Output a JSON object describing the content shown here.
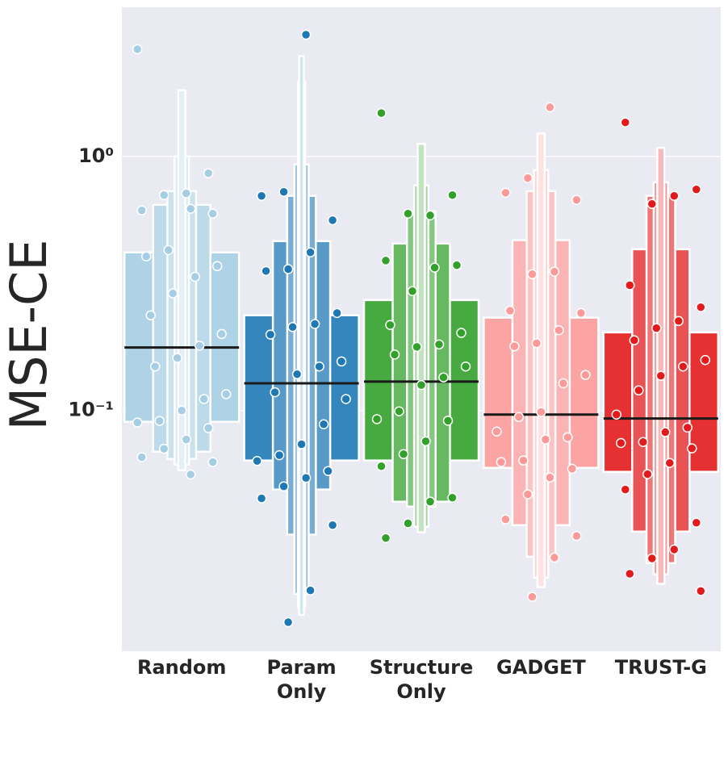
{
  "chart_data": {
    "type": "boxen",
    "y_label": "MSE-CE",
    "log_y": true,
    "grid": true,
    "categories": [
      "Random",
      "Param\nOnly",
      "Structure\nOnly",
      "GADGET",
      "TRUST-G"
    ],
    "ylim": [
      0.0113,
      3.86
    ],
    "yticks": [
      {
        "value": 0.1,
        "label": "10⁻¹"
      },
      {
        "value": 1,
        "label": "10⁰"
      }
    ],
    "groups": [
      {
        "color": "#a6cee3",
        "median": 0.177,
        "levels": [
          [
            0.0903,
            0.419
          ],
          [
            0.0689,
            0.645
          ],
          [
            0.0645,
            0.73
          ],
          [
            0.0612,
            1.0
          ],
          [
            0.0582,
            1.82
          ]
        ],
        "points": [
          2.64,
          0.858,
          0.715,
          0.704,
          0.613,
          0.595,
          0.622,
          0.428,
          0.404,
          0.37,
          0.336,
          0.289,
          0.237,
          0.2,
          0.18,
          0.161,
          0.149,
          0.116,
          0.111,
          0.1,
          0.091,
          0.0897,
          0.0853,
          0.0769,
          0.0707,
          0.0655,
          0.0627,
          0.056
        ]
      },
      {
        "color": "#1f78b4",
        "median": 0.128,
        "levels": [
          [
            0.0636,
            0.237
          ],
          [
            0.0489,
            0.464
          ],
          [
            0.0325,
            0.699
          ],
          [
            0.019,
            0.93
          ],
          [
            0.0169,
            1.96
          ],
          [
            0.0157,
            2.48
          ]
        ],
        "points": [
          3.01,
          0.725,
          0.699,
          0.561,
          0.419,
          0.36,
          0.354,
          0.242,
          0.219,
          0.213,
          0.199,
          0.156,
          0.149,
          0.139,
          0.118,
          0.111,
          0.0883,
          0.0737,
          0.0667,
          0.0633,
          0.0578,
          0.0543,
          0.0503,
          0.0451,
          0.0354,
          0.0196,
          0.0147
        ]
      },
      {
        "color": "#33a02c",
        "median": 0.13,
        "levels": [
          [
            0.0636,
            0.272
          ],
          [
            0.0438,
            0.454
          ],
          [
            0.0419,
            0.608
          ],
          [
            0.0349,
            0.769
          ],
          [
            0.0332,
            1.12
          ]
        ],
        "points": [
          1.48,
          0.704,
          0.586,
          0.595,
          0.389,
          0.373,
          0.365,
          0.295,
          0.217,
          0.202,
          0.182,
          0.178,
          0.166,
          0.149,
          0.135,
          0.126,
          0.0993,
          0.0925,
          0.0912,
          0.0757,
          0.0674,
          0.0604,
          0.0454,
          0.0438,
          0.036,
          0.0315
        ]
      },
      {
        "color": "#fb9a99",
        "median": 0.0964,
        "levels": [
          [
            0.0595,
            0.232
          ],
          [
            0.0354,
            0.468
          ],
          [
            0.0266,
            0.73
          ],
          [
            0.022,
            0.883
          ],
          [
            0.0202,
            1.23
          ]
        ],
        "points": [
          1.56,
          0.821,
          0.719,
          0.674,
          0.352,
          0.344,
          0.247,
          0.242,
          0.207,
          0.184,
          0.179,
          0.138,
          0.128,
          0.0987,
          0.0943,
          0.0827,
          0.0785,
          0.0769,
          0.0636,
          0.0627,
          0.059,
          0.0545,
          0.0468,
          0.0373,
          0.0321,
          0.0264,
          0.0185
        ]
      },
      {
        "color": "#e31a1c",
        "median": 0.093,
        "levels": [
          [
            0.0574,
            0.203
          ],
          [
            0.0334,
            0.431
          ],
          [
            0.0251,
            0.699
          ],
          [
            0.0227,
            0.791
          ],
          [
            0.0208,
            1.08
          ]
        ],
        "points": [
          1.36,
          0.741,
          0.699,
          0.65,
          0.311,
          0.255,
          0.225,
          0.211,
          0.189,
          0.158,
          0.149,
          0.137,
          0.12,
          0.0964,
          0.0857,
          0.0822,
          0.0752,
          0.0745,
          0.071,
          0.0622,
          0.0562,
          0.0489,
          0.0362,
          0.0284,
          0.0262,
          0.0228,
          0.0195
        ]
      }
    ]
  }
}
